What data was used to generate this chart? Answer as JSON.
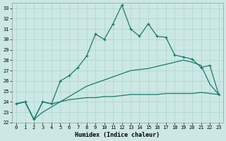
{
  "xlabel": "Humidex (Indice chaleur)",
  "bg_color": "#cce8e4",
  "grid_color": "#aad4cf",
  "line_color": "#1a7a6e",
  "x_ticks": [
    0,
    1,
    2,
    3,
    4,
    5,
    6,
    7,
    8,
    9,
    10,
    11,
    12,
    13,
    14,
    15,
    16,
    17,
    18,
    19,
    20,
    21,
    22,
    23
  ],
  "ylim": [
    22,
    33.5
  ],
  "xlim": [
    -0.5,
    23.5
  ],
  "yticks": [
    22,
    23,
    24,
    25,
    26,
    27,
    28,
    29,
    30,
    31,
    32,
    33
  ],
  "line1_x": [
    0,
    1,
    2,
    3,
    4,
    5,
    6,
    7,
    8,
    9,
    10,
    11,
    12,
    13,
    14,
    15,
    16,
    17,
    18,
    19,
    20,
    21,
    22,
    23
  ],
  "line1_y": [
    23.8,
    24.0,
    22.3,
    24.0,
    23.8,
    26.0,
    26.5,
    27.3,
    28.4,
    30.5,
    30.0,
    31.5,
    33.3,
    31.0,
    30.3,
    31.5,
    30.3,
    30.2,
    28.5,
    28.3,
    28.1,
    27.3,
    27.5,
    24.7
  ],
  "line2_x": [
    0,
    1,
    2,
    3,
    4,
    5,
    6,
    7,
    8,
    9,
    10,
    11,
    12,
    13,
    14,
    15,
    16,
    17,
    18,
    19,
    20,
    21,
    22,
    23
  ],
  "line2_y": [
    23.8,
    24.0,
    22.3,
    24.0,
    23.8,
    24.0,
    24.2,
    24.3,
    24.4,
    24.4,
    24.5,
    24.5,
    24.6,
    24.7,
    24.7,
    24.7,
    24.7,
    24.8,
    24.8,
    24.8,
    24.8,
    24.9,
    24.8,
    24.7
  ],
  "line3_x": [
    0,
    1,
    2,
    3,
    4,
    5,
    6,
    7,
    8,
    9,
    10,
    11,
    12,
    13,
    14,
    15,
    16,
    17,
    18,
    19,
    20,
    21,
    22,
    23
  ],
  "line3_y": [
    23.8,
    24.0,
    22.3,
    23.0,
    23.5,
    24.0,
    24.5,
    25.0,
    25.5,
    25.8,
    26.1,
    26.4,
    26.7,
    27.0,
    27.1,
    27.2,
    27.4,
    27.6,
    27.8,
    28.0,
    27.8,
    27.5,
    25.7,
    24.7
  ]
}
